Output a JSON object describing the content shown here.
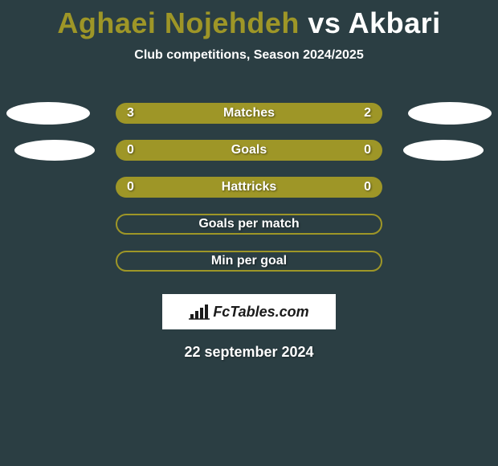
{
  "title": {
    "player1": "Aghaei Nojehdeh",
    "vs": "vs",
    "player2": "Akbari",
    "color_main": "#ffffff",
    "color_accent": "#9e9627",
    "fontsize": 36
  },
  "subtitle": {
    "text": "Club competitions, Season 2024/2025",
    "color": "#ffffff",
    "fontsize": 16
  },
  "background_color": "#2b3e43",
  "bar_fill_color": "#9e9627",
  "text_color": "#ffffff",
  "stats": [
    {
      "label": "Matches",
      "left_value": "3",
      "right_value": "2",
      "filled": true,
      "show_left_ellipse": true,
      "show_right_ellipse": true,
      "ellipse_left_class": "ellipse-left",
      "ellipse_right_class": "ellipse-right"
    },
    {
      "label": "Goals",
      "left_value": "0",
      "right_value": "0",
      "filled": true,
      "show_left_ellipse": true,
      "show_right_ellipse": true,
      "ellipse_left_class": "ellipse-small-left",
      "ellipse_right_class": "ellipse-small-right"
    },
    {
      "label": "Hattricks",
      "left_value": "0",
      "right_value": "0",
      "filled": true,
      "show_left_ellipse": false,
      "show_right_ellipse": false
    },
    {
      "label": "Goals per match",
      "left_value": "",
      "right_value": "",
      "filled": false,
      "show_left_ellipse": false,
      "show_right_ellipse": false
    },
    {
      "label": "Min per goal",
      "left_value": "",
      "right_value": "",
      "filled": false,
      "show_left_ellipse": false,
      "show_right_ellipse": false
    }
  ],
  "logo": {
    "text": "FcTables.com",
    "banner_bg": "#ffffff",
    "text_color": "#1a1a1a"
  },
  "date": {
    "text": "22 september 2024",
    "color": "#ffffff",
    "fontsize": 18
  }
}
